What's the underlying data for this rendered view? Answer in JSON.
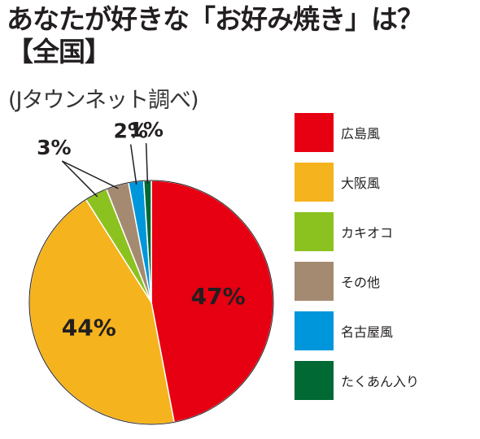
{
  "title": {
    "line1": "あなたが好きな「お好み焼き」は？",
    "line2": "【全国】"
  },
  "subtitle": "(Jタウンネット調べ)",
  "chart_data": {
    "type": "pie",
    "start_angle": "12 o'clock",
    "direction": "clockwise",
    "slices": [
      {
        "label": "広島風",
        "value": 47,
        "value_label": "47%",
        "color": "#e60012"
      },
      {
        "label": "大阪風",
        "value": 44,
        "value_label": "44%",
        "color": "#f5b31d"
      },
      {
        "label": "カキオコ",
        "value": 3,
        "value_label": "3%",
        "color": "#8cc220"
      },
      {
        "label": "その他",
        "value": 3,
        "value_label": "",
        "color": "#a58a72"
      },
      {
        "label": "名古屋風",
        "value": 2,
        "value_label": "2%",
        "color": "#0096db"
      },
      {
        "label": "たくあん入り",
        "value": 1,
        "value_label": "1%",
        "color": "#006934"
      }
    ],
    "legend_position": "right"
  }
}
